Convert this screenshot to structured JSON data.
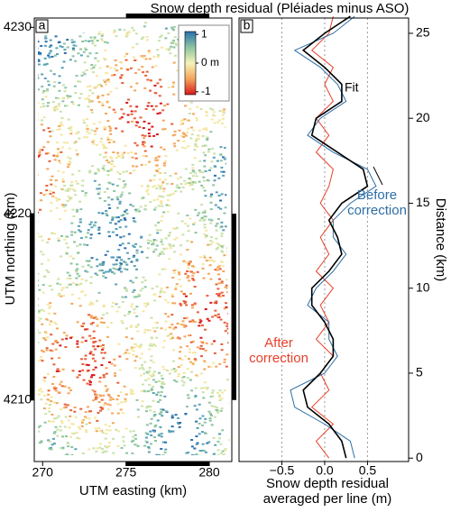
{
  "chart_data": [
    {
      "type": "map",
      "panel_label": "a",
      "xlabel": "UTM easting (km)",
      "ylabel": "UTM northing (km)",
      "xlim": [
        269.5,
        281.35
      ],
      "ylim": [
        4206.7,
        4230.5
      ],
      "xticks": [
        270,
        275,
        280
      ],
      "yticks": [
        4210,
        4220,
        4230
      ],
      "colorbar": {
        "lim": [
          -1.1,
          1.1
        ],
        "ticks": [
          1,
          {
            "value": 0,
            "label": "0 m"
          },
          -1
        ]
      }
    },
    {
      "type": "line",
      "panel_label": "b",
      "title": "Snow depth residual (Pléiades minus ASO)",
      "xlabel": "Snow depth residual averaged per line (m)",
      "ylabel": "Distance (km)",
      "xlim": [
        -1,
        0.98
      ],
      "ylim": [
        -0.2,
        25.9
      ],
      "xticks": [
        {
          "value": -0.5,
          "label": "−0.5"
        },
        {
          "value": 0,
          "label": "0.0"
        },
        {
          "value": 0.5,
          "label": "0.5"
        }
      ],
      "yticks": [
        0,
        5,
        10,
        15,
        20,
        25
      ],
      "grid": true,
      "x": [
        0,
        1,
        2,
        3,
        4,
        5,
        6,
        7,
        8,
        9,
        10,
        11,
        12,
        13,
        14,
        15,
        16,
        17,
        18,
        19,
        20,
        21,
        22,
        23,
        24,
        25,
        26
      ],
      "series": [
        {
          "name": "After correction",
          "color": "#e8402a",
          "values": [
            0.05,
            -0.1,
            0.1,
            -0.15,
            0.05,
            -0.05,
            0.1,
            -0.1,
            0.05,
            -0.05,
            0.1,
            -0.1,
            0.05,
            -0.05,
            0.1,
            -0.05,
            0.05,
            0.1,
            -0.1,
            0.05,
            -0.1,
            0.1,
            0.0,
            0.1,
            -0.15,
            0.05,
            0.1
          ]
        },
        {
          "name": "Before correction",
          "color": "#2e6ea6",
          "values": [
            0.35,
            0.3,
            0.0,
            -0.35,
            -0.4,
            0.0,
            0.15,
            0.05,
            0.05,
            -0.2,
            -0.1,
            0.1,
            0.25,
            0.1,
            0.1,
            0.3,
            0.6,
            0.5,
            0.1,
            -0.2,
            -0.05,
            0.25,
            0.15,
            -0.05,
            -0.35,
            0.1,
            0.35
          ]
        },
        {
          "name": "Fit",
          "color": "#000000",
          "values": [
            0.25,
            0.2,
            0.05,
            -0.2,
            -0.25,
            -0.05,
            0.1,
            0.1,
            0.0,
            -0.15,
            -0.15,
            0.05,
            0.2,
            0.15,
            0.05,
            0.2,
            0.5,
            0.45,
            0.15,
            -0.15,
            -0.1,
            0.2,
            0.2,
            0.0,
            -0.25,
            0.0,
            0.3
          ]
        }
      ]
    }
  ]
}
